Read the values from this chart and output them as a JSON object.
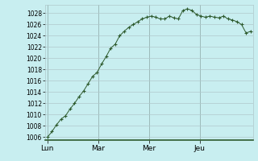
{
  "background_color": "#c8eef0",
  "grid_color": "#b0c8cc",
  "line_color": "#2d5a2d",
  "marker_color": "#2d5a2d",
  "x_labels": [
    "Lun",
    "Mar",
    "Mer",
    "Jeu"
  ],
  "ylim": [
    1005.5,
    1029.5
  ],
  "yticks": [
    1006,
    1008,
    1010,
    1012,
    1014,
    1016,
    1018,
    1020,
    1022,
    1024,
    1026,
    1028
  ],
  "data": [
    1006.0,
    1007.0,
    1008.2,
    1009.2,
    1009.8,
    1011.0,
    1012.0,
    1013.2,
    1014.2,
    1015.5,
    1016.8,
    1017.5,
    1019.0,
    1020.3,
    1021.8,
    1022.5,
    1024.0,
    1024.8,
    1025.5,
    1026.0,
    1026.5,
    1027.0,
    1027.3,
    1027.5,
    1027.3,
    1027.0,
    1027.0,
    1027.5,
    1027.2,
    1027.0,
    1028.5,
    1028.8,
    1028.5,
    1027.8,
    1027.5,
    1027.3,
    1027.5,
    1027.3,
    1027.2,
    1027.5,
    1027.0,
    1026.8,
    1026.5,
    1026.0,
    1024.5,
    1024.8
  ],
  "vline_color": "#4a7a6a",
  "spine_bottom_color": "#2d5a2d",
  "ylabel_fontsize": 5.5,
  "xlabel_fontsize": 6.5
}
